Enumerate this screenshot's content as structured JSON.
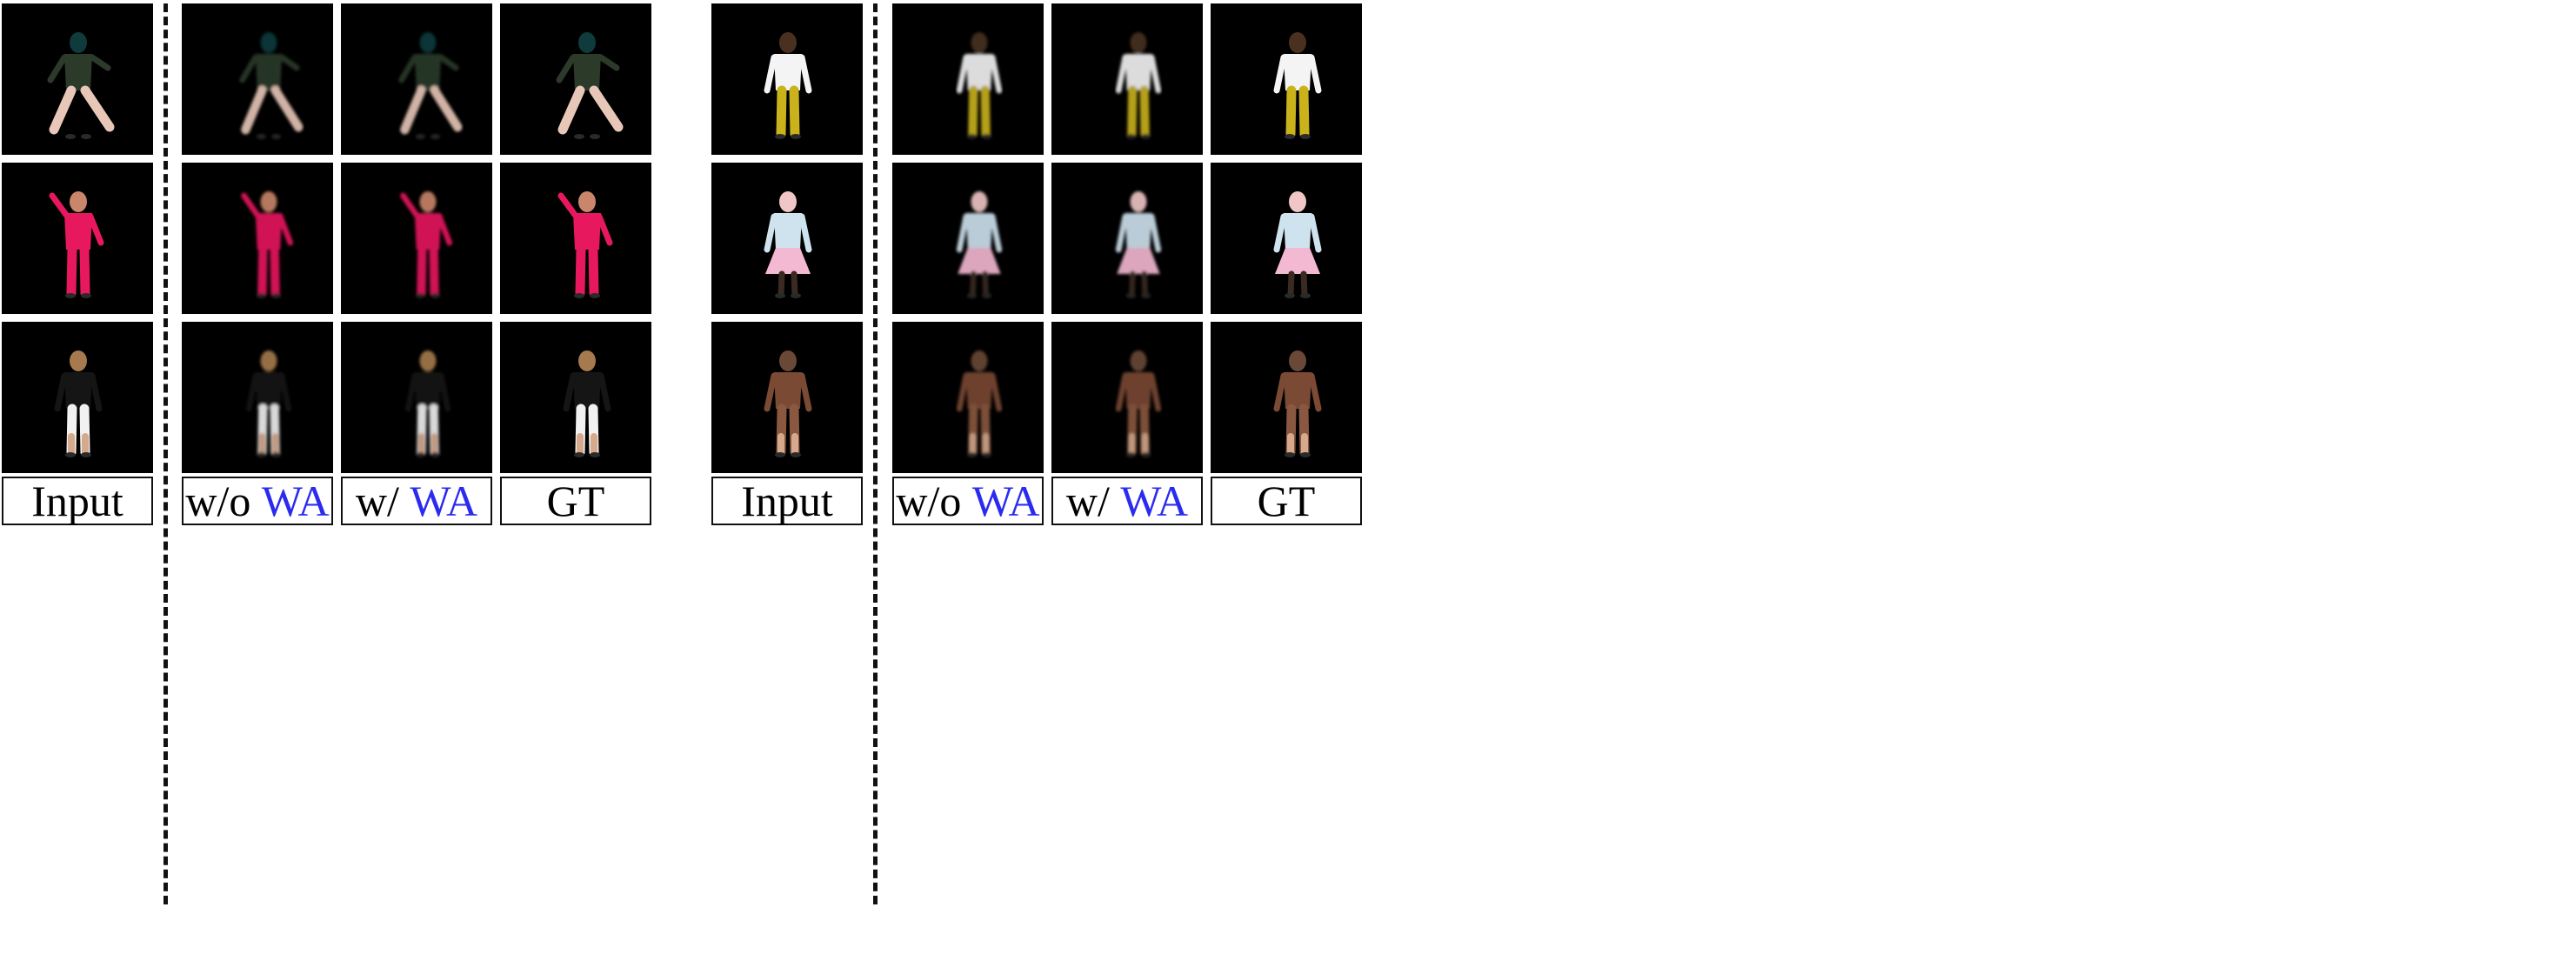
{
  "figure": {
    "label_text": {
      "input": "Input",
      "without": "w/o",
      "with": "w/",
      "wa": "WA",
      "gt": "GT"
    },
    "colors": {
      "highlight": "#2b2bf0",
      "tile_bg": "#000000"
    },
    "panels": [
      {
        "subjects": [
          {
            "top": "#2c3a2a",
            "bottom": "#e8c7b8",
            "head": "#0f3b3d",
            "pose": "lunge"
          },
          {
            "top": "#e8185e",
            "bottom": "#e8185e",
            "head": "#c9866a",
            "pose": "dance"
          },
          {
            "top": "#151515",
            "bottom": "#f1f1f1",
            "head": "#a67a4e",
            "pose": "back"
          }
        ]
      },
      {
        "subjects": [
          {
            "top": "#f4f4f4",
            "bottom": "#c9b21a",
            "head": "#4a3020",
            "pose": "stand"
          },
          {
            "top": "#cfe3ef",
            "bottom": "#f4b9d2",
            "head": "#f1c6c6",
            "pose": "skirt"
          },
          {
            "top": "#7a4a34",
            "bottom": "#8a5840",
            "head": "#6a4838",
            "pose": "walk"
          }
        ]
      }
    ]
  }
}
